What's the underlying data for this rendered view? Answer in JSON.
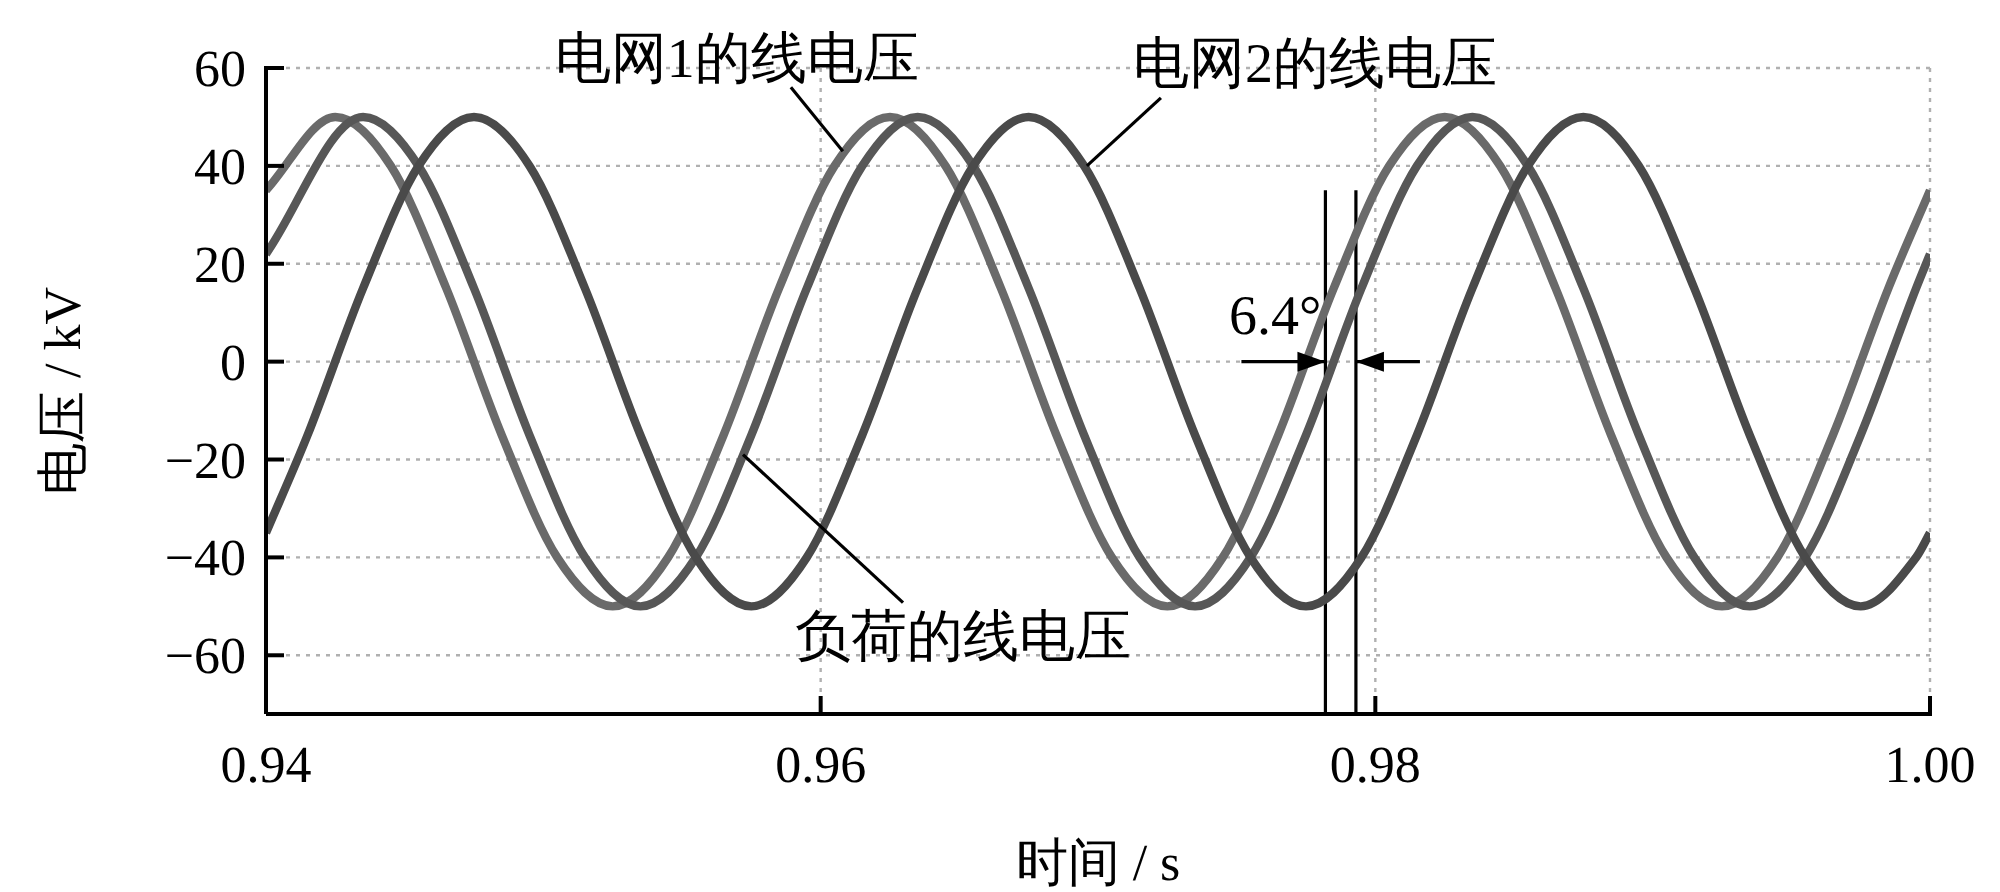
{
  "chart_data": {
    "type": "line",
    "xlabel": "时间 / s",
    "ylabel": "电压 / kV",
    "xlim": [
      0.94,
      1.0
    ],
    "ylim": [
      -72,
      60
    ],
    "xticks": [
      0.94,
      0.96,
      0.98,
      {
        "value": 1.0,
        "label": "1.00"
      }
    ],
    "yticks": [
      -60,
      -40,
      -20,
      0,
      20,
      40,
      60
    ],
    "grid": true,
    "series": [
      {
        "color": "#6a6a6a",
        "x": [
          0.94,
          0.9425,
          0.9445,
          0.9465,
          0.9485,
          0.9505,
          0.9525,
          0.9545,
          0.9565,
          0.9585,
          0.9605,
          0.9625,
          0.9645,
          0.9665,
          0.9685,
          0.9705,
          0.9725,
          0.9745,
          0.9765,
          0.9785,
          0.9805,
          0.9825,
          0.9845,
          0.9865,
          0.9885,
          0.9905,
          0.9925,
          0.9945,
          0.9965,
          0.9985,
          1.0
        ],
        "values": [
          35,
          50,
          40,
          15,
          -15,
          -40,
          -50,
          -40,
          -15,
          15,
          40,
          50,
          40,
          15,
          -15,
          -40,
          -50,
          -40,
          -15,
          15,
          40,
          50,
          40,
          15,
          -15,
          -40,
          -50,
          -40,
          -15,
          15,
          35
        ]
      },
      {
        "color": "#575757",
        "x": [
          0.94,
          0.9435,
          0.9455,
          0.9475,
          0.9495,
          0.9515,
          0.9535,
          0.9555,
          0.9575,
          0.9595,
          0.9615,
          0.9635,
          0.9655,
          0.9675,
          0.9695,
          0.9715,
          0.9735,
          0.9755,
          0.9775,
          0.9795,
          0.9815,
          0.9835,
          0.9855,
          0.9875,
          0.9895,
          0.9915,
          0.9935,
          0.9955,
          0.9975,
          0.9995,
          1.0
        ],
        "values": [
          22,
          50,
          40,
          15,
          -15,
          -40,
          -50,
          -40,
          -15,
          15,
          40,
          50,
          40,
          15,
          -15,
          -40,
          -50,
          -40,
          -15,
          15,
          40,
          50,
          40,
          15,
          -15,
          -40,
          -50,
          -40,
          -15,
          15,
          22
        ]
      },
      {
        "color": "#4a4a4a",
        "x": [
          0.94,
          0.9415,
          0.9435,
          0.9455,
          0.9475,
          0.9495,
          0.9515,
          0.9535,
          0.9555,
          0.9575,
          0.9595,
          0.9615,
          0.9635,
          0.9655,
          0.9675,
          0.9695,
          0.9715,
          0.9735,
          0.9755,
          0.9775,
          0.9795,
          0.9815,
          0.9835,
          0.9855,
          0.9875,
          0.9895,
          0.9915,
          0.9935,
          0.9955,
          0.9975,
          0.9995,
          1.0
        ],
        "values": [
          -35,
          -15,
          15,
          40,
          50,
          40,
          15,
          -15,
          -40,
          -50,
          -40,
          -15,
          15,
          40,
          50,
          40,
          15,
          -15,
          -40,
          -50,
          -40,
          -15,
          15,
          40,
          50,
          40,
          15,
          -15,
          -40,
          -50,
          -40,
          -35
        ]
      }
    ],
    "annotations": [
      {
        "text": "电网1的线电压",
        "x": 0.9608,
        "y": 43
      },
      {
        "text": "电网2的线电压",
        "x": 0.9696,
        "y": 40
      },
      {
        "text": "负荷的线电压",
        "x": 0.9572,
        "y": -19
      },
      {
        "text": "6.4°",
        "x": 0.97875,
        "y": 0
      }
    ],
    "ref_lines": [
      {
        "axis": "x",
        "value": 0.9782,
        "color": "#000000"
      },
      {
        "axis": "x",
        "value": 0.9793,
        "color": "#000000"
      }
    ]
  }
}
